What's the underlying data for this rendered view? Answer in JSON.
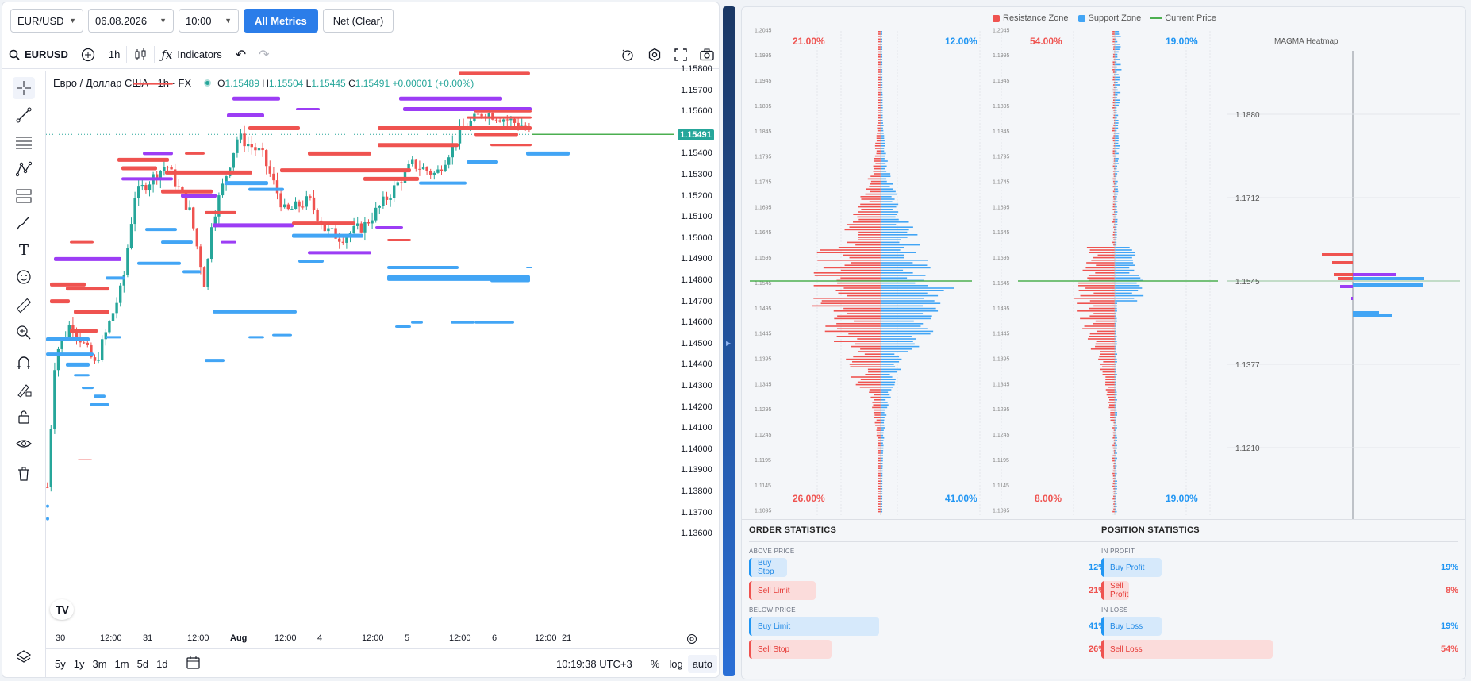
{
  "toolbar": {
    "symbol_select": "EUR/USD",
    "date_select": "06.08.2026",
    "time_select": "10:00",
    "all_metrics": "All Metrics",
    "net_clear": "Net (Clear)"
  },
  "tv_toolbar": {
    "symbol": "EURUSD",
    "interval": "1h",
    "indicators": "Indicators"
  },
  "legend": {
    "title": "Евро / Доллар США · 1h · FX",
    "o_label": "O",
    "o_val": "1.15489",
    "h_label": "H",
    "h_val": "1.15504",
    "l_label": "L",
    "l_val": "1.15445",
    "c_label": "C",
    "c_val": "1.15491",
    "change": "+0.00001 (+0.00%)"
  },
  "price_axis": [
    "1.15800",
    "1.15700",
    "1.15600",
    "1.15491",
    "1.15400",
    "1.15300",
    "1.15200",
    "1.15100",
    "1.15000",
    "1.14900",
    "1.14800",
    "1.14700",
    "1.14600",
    "1.14500",
    "1.14400",
    "1.14300",
    "1.14200",
    "1.14100",
    "1.14000",
    "1.13900",
    "1.13800",
    "1.13700",
    "1.13600"
  ],
  "current_price": "1.15491",
  "time_axis": [
    "30",
    "12:00",
    "31",
    "12:00",
    "Aug",
    "12:00",
    "4",
    "12:00",
    "5",
    "12:00",
    "6",
    "12:00",
    "21"
  ],
  "bottom_bar": {
    "ranges": [
      "5y",
      "1y",
      "3m",
      "1m",
      "5d",
      "1d"
    ],
    "clock": "10:19:38 UTC+3",
    "pct": "%",
    "log": "log",
    "auto": "auto"
  },
  "colors": {
    "resistance": "#ef5350",
    "support": "#42a5f5",
    "purple": "#9c3df5",
    "candle_up": "#26a69a",
    "current": "#4caf50",
    "accent": "#2b7de9"
  },
  "right_legend": {
    "resistance": "Resistance Zone",
    "support": "Support Zone",
    "current": "Current Price"
  },
  "profile1": {
    "tl": "21.00%",
    "tr": "12.00%",
    "bl": "26.00%",
    "br": "41.00%"
  },
  "profile2": {
    "tl": "54.00%",
    "tr": "19.00%",
    "bl": "8.00%",
    "br": "19.00%"
  },
  "profile_price_labels": [
    "1.2045",
    "1.1995",
    "1.1945",
    "1.1895",
    "1.1845",
    "1.1795",
    "1.1745",
    "1.1695",
    "1.1645",
    "1.1595",
    "1.1545",
    "1.1495",
    "1.1445",
    "1.1395",
    "1.1345",
    "1.1295",
    "1.1245",
    "1.1195",
    "1.1145",
    "1.1095"
  ],
  "heatmap": {
    "title": "MAGMA Heatmap",
    "labels": [
      "1.1880",
      "1.1712",
      "1.1545",
      "1.1377",
      "1.1210"
    ]
  },
  "order_stats": {
    "title": "ORDER STATISTICS",
    "above": "ABOVE PRICE",
    "below": "BELOW PRICE",
    "rows": [
      {
        "label": "Buy Stop",
        "pct": "12%",
        "value": 0.12
      },
      {
        "label": "Sell Limit",
        "pct": "21%",
        "value": 0.21
      },
      {
        "label": "Buy Limit",
        "pct": "41%",
        "value": 0.41
      },
      {
        "label": "Sell Stop",
        "pct": "26%",
        "value": 0.26
      }
    ]
  },
  "position_stats": {
    "title": "POSITION STATISTICS",
    "profit": "IN PROFIT",
    "loss": "IN LOSS",
    "rows": [
      {
        "label": "Buy Profit",
        "pct": "19%",
        "value": 0.19
      },
      {
        "label": "Sell Profit",
        "pct": "8%",
        "value": 0.08
      },
      {
        "label": "Buy Loss",
        "pct": "19%",
        "value": 0.19
      },
      {
        "label": "Sell Loss",
        "pct": "54%",
        "value": 0.54
      }
    ]
  }
}
